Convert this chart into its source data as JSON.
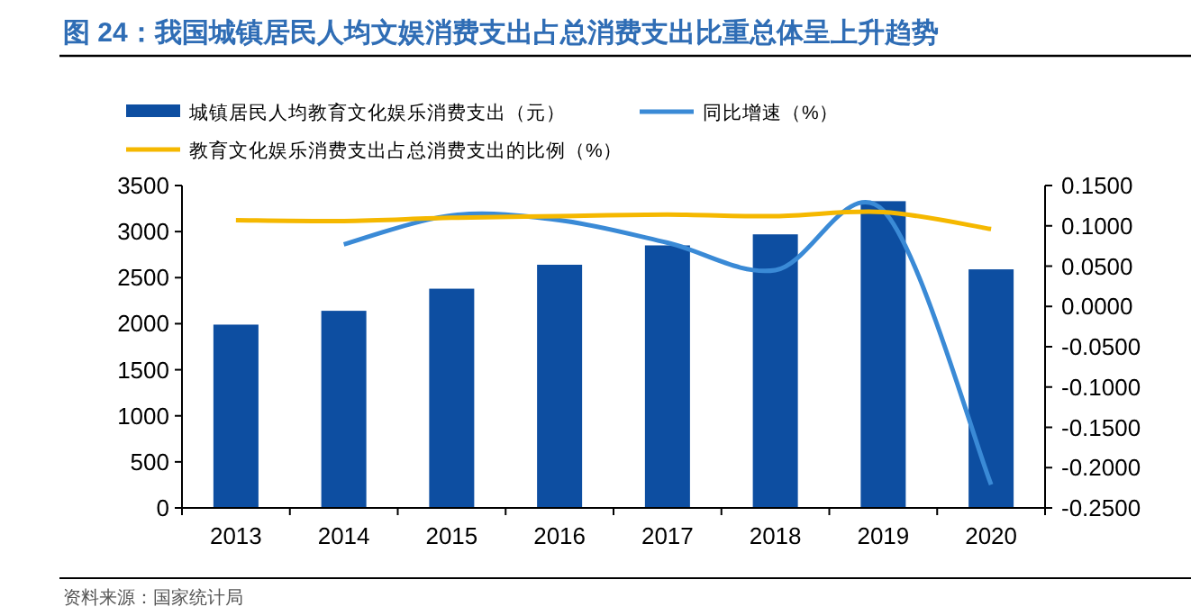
{
  "chart_data": {
    "type": "bar",
    "title": "图 24：我国城镇居民人均文娱消费支出占总消费支出比重总体呈上升趋势",
    "categories": [
      "2013",
      "2014",
      "2015",
      "2016",
      "2017",
      "2018",
      "2019",
      "2020"
    ],
    "series": [
      {
        "name": "城镇居民人均教育文化娱乐消费支出（元）",
        "color": "#0d4ea1",
        "values": [
          1990,
          2140,
          2380,
          2640,
          2850,
          2970,
          3330,
          2590
        ]
      },
      {
        "name": "同比增速（%）",
        "type": "line",
        "axis": "y2",
        "color": "#3a8ad6",
        "values": [
          null,
          0.077,
          0.113,
          0.107,
          0.079,
          0.045,
          0.119,
          -0.221
        ]
      },
      {
        "name": "教育文化娱乐消费支出占总消费支出的比例（%）",
        "type": "line",
        "axis": "y2",
        "color": "#f5b800",
        "values": [
          0.107,
          0.106,
          0.11,
          0.112,
          0.114,
          0.112,
          0.117,
          0.096
        ]
      }
    ],
    "ylim": [
      0,
      3500
    ],
    "yticks": [
      0,
      500,
      1000,
      1500,
      2000,
      2500,
      3000,
      3500
    ],
    "y2lim": [
      -0.25,
      0.15
    ],
    "y2ticks": [
      {
        "value": -0.25,
        "label": "-0.2500"
      },
      {
        "value": -0.2,
        "label": "-0.2000"
      },
      {
        "value": -0.15,
        "label": "-0.1500"
      },
      {
        "value": -0.1,
        "label": "-0.1000"
      },
      {
        "value": -0.05,
        "label": "-0.0500"
      },
      {
        "value": 0,
        "label": "0.0000"
      },
      {
        "value": 0.05,
        "label": "0.0500"
      },
      {
        "value": 0.1,
        "label": "0.1000"
      },
      {
        "value": 0.15,
        "label": "0.1500"
      }
    ],
    "grid": false,
    "legend": "top",
    "annotations": [
      "资料来源：国家统计局"
    ]
  }
}
